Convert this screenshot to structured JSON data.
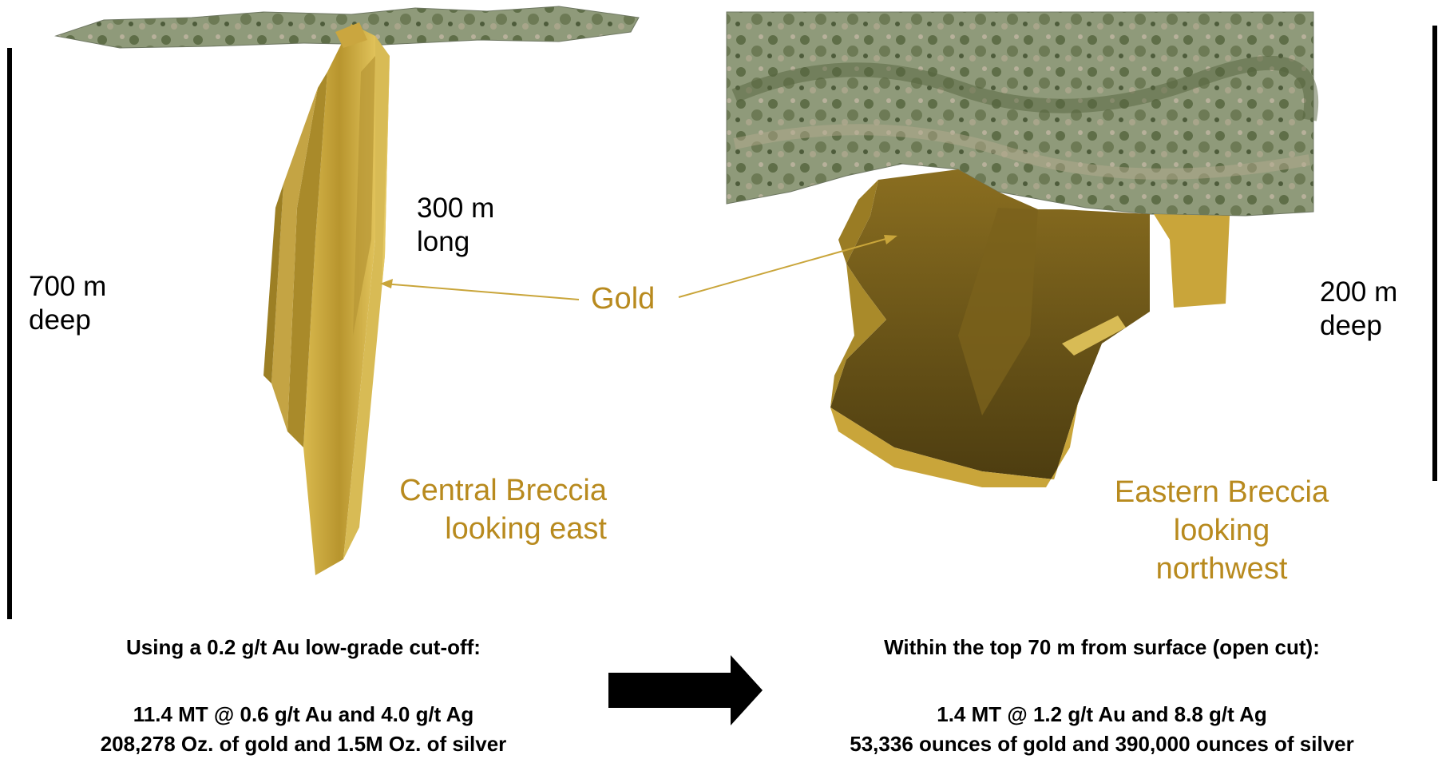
{
  "left": {
    "depth_line1": "700 m",
    "depth_line2": "deep",
    "length_line1": "300 m",
    "length_line2": "long",
    "title_line1": "Central Breccia",
    "title_line2": "looking east",
    "cutoff": "Using a 0.2 g/t Au low-grade cut-off:",
    "grade": "11.4 MT @ 0.6 g/t Au and 4.0 g/t Ag",
    "ounces": "208,278 Oz. of gold and 1.5M Oz. of silver"
  },
  "center": {
    "gold_label": "Gold"
  },
  "right": {
    "depth_line1": "200 m",
    "depth_line2": "deep",
    "title_line1": "Eastern Breccia",
    "title_line2": "looking",
    "title_line3": "northwest",
    "scope": "Within the top 70 m from surface (open cut):",
    "grade": "1.4 MT @ 1.2 g/t Au and 8.8 g/t Ag",
    "ounces": "53,336 ounces of gold and 390,000 ounces of silver"
  },
  "colors": {
    "gold": "#c9a53a",
    "gold_dark": "#6b5518",
    "label_gold": "#b88a1e",
    "terrain": "#7f8d6d"
  }
}
